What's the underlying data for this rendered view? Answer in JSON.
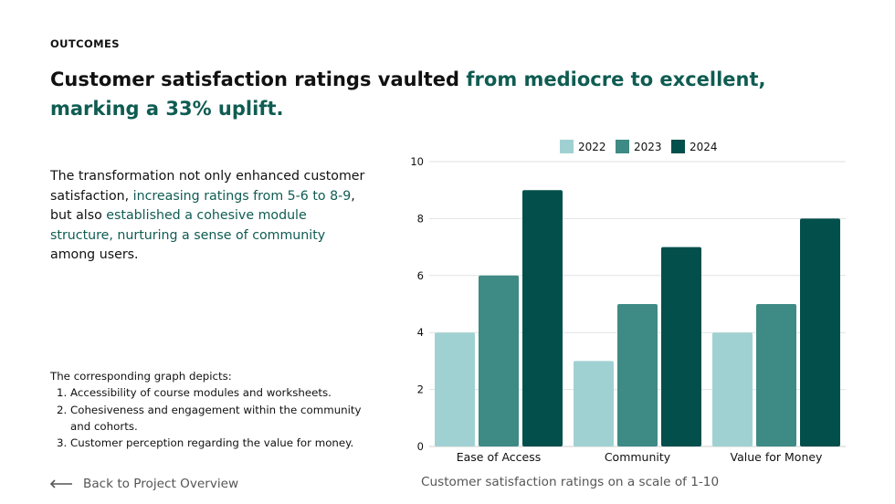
{
  "eyebrow": "OUTCOMES",
  "headline": {
    "part1": "Customer satisfaction ratings vaulted ",
    "part2": "from mediocre to excellent, marking a 33% uplift."
  },
  "paragraph": {
    "t1": "The transformation not only enhanced customer satisfaction, ",
    "t2": "increasing ratings from 5-6 to 8-9",
    "t3": ", but also ",
    "t4": "established a cohesive module structure, nurturing a sense of community",
    "t5": " among users."
  },
  "notes": {
    "intro": "The corresponding graph depicts:",
    "items": [
      "Accessibility of course modules and worksheets.",
      "Cohesiveness and engagement within the community and cohorts.",
      "Customer perception regarding the value for money."
    ]
  },
  "back_link": {
    "label": "Back to Project Overview",
    "icon": "arrow-left-icon"
  },
  "colors": {
    "accent_text": "#0f5c52",
    "series_2022": "#a0d1d2",
    "series_2023": "#3e8a85",
    "series_2024": "#024f4c",
    "grid": "#e2e2e2"
  },
  "chart_data": {
    "type": "bar",
    "title": "",
    "caption": "Customer satisfaction ratings on a scale of 1-10",
    "xlabel": "",
    "ylabel": "",
    "categories": [
      "Ease of Access",
      "Community",
      "Value for Money"
    ],
    "series": [
      {
        "name": "2022",
        "values": [
          4,
          3,
          4
        ]
      },
      {
        "name": "2023",
        "values": [
          6,
          5,
          5
        ]
      },
      {
        "name": "2024",
        "values": [
          9,
          7,
          8
        ]
      }
    ],
    "ylim": [
      0,
      10
    ],
    "yticks": [
      0,
      2,
      4,
      6,
      8,
      10
    ],
    "grid": true,
    "legend_position": "top-center"
  }
}
